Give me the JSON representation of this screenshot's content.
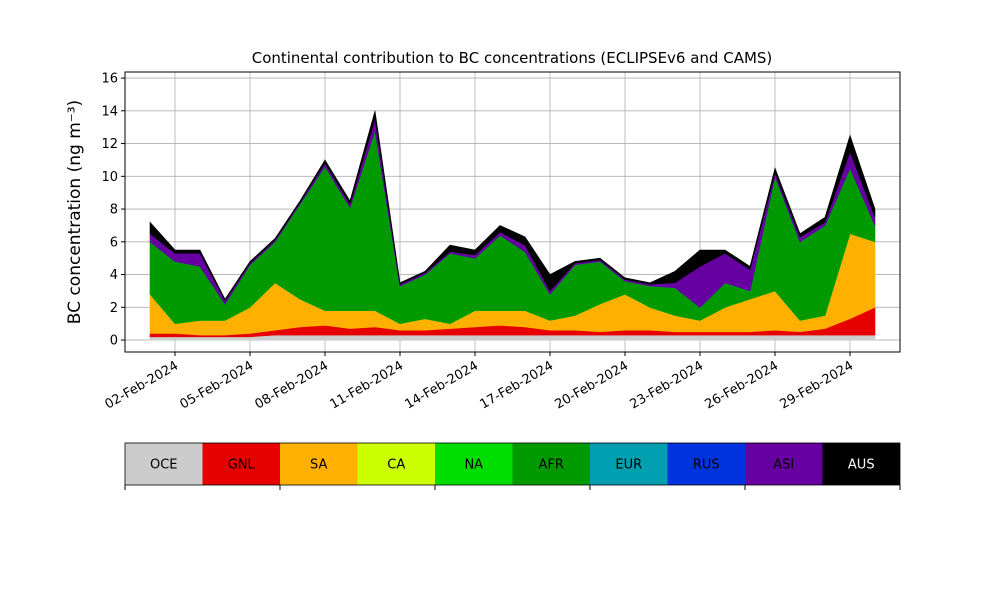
{
  "chart_data": {
    "type": "stacked_area",
    "title": "Continental contribution to BC concentrations (ECLIPSEv6 and CAMS)",
    "y_label": "BC concentration (ng m⁻³)",
    "x": [
      "2024-02-01",
      "2024-02-02",
      "2024-02-03",
      "2024-02-04",
      "2024-02-05",
      "2024-02-06",
      "2024-02-07",
      "2024-02-08",
      "2024-02-09",
      "2024-02-10",
      "2024-02-11",
      "2024-02-12",
      "2024-02-13",
      "2024-02-14",
      "2024-02-15",
      "2024-02-16",
      "2024-02-17",
      "2024-02-18",
      "2024-02-19",
      "2024-02-20",
      "2024-02-21",
      "2024-02-22",
      "2024-02-23",
      "2024-02-24",
      "2024-02-25",
      "2024-02-26",
      "2024-02-27",
      "2024-02-28",
      "2024-02-29",
      "2024-03-01"
    ],
    "xlim": [
      "2024-01-31",
      "2024-03-02"
    ],
    "xticks": [
      {
        "value": "2024-02-02",
        "label": "02-Feb-2024"
      },
      {
        "value": "2024-02-05",
        "label": "05-Feb-2024"
      },
      {
        "value": "2024-02-08",
        "label": "08-Feb-2024"
      },
      {
        "value": "2024-02-11",
        "label": "11-Feb-2024"
      },
      {
        "value": "2024-02-14",
        "label": "14-Feb-2024"
      },
      {
        "value": "2024-02-17",
        "label": "17-Feb-2024"
      },
      {
        "value": "2024-02-20",
        "label": "20-Feb-2024"
      },
      {
        "value": "2024-02-23",
        "label": "23-Feb-2024"
      },
      {
        "value": "2024-02-26",
        "label": "26-Feb-2024"
      },
      {
        "value": "2024-02-29",
        "label": "29-Feb-2024"
      }
    ],
    "ylim": [
      -0.73,
      16.37
    ],
    "yticks": [
      0,
      2,
      4,
      6,
      8,
      10,
      12,
      14,
      16
    ],
    "grid": true,
    "series": [
      {
        "name": "OCE",
        "color": "#cccccc",
        "values": [
          0.2,
          0.2,
          0.2,
          0.2,
          0.2,
          0.3,
          0.3,
          0.3,
          0.3,
          0.3,
          0.3,
          0.3,
          0.3,
          0.3,
          0.3,
          0.3,
          0.3,
          0.3,
          0.3,
          0.3,
          0.3,
          0.3,
          0.3,
          0.3,
          0.3,
          0.3,
          0.3,
          0.3,
          0.3,
          0.3
        ]
      },
      {
        "name": "GNL",
        "color": "#e60000",
        "values": [
          0.2,
          0.2,
          0.1,
          0.1,
          0.2,
          0.3,
          0.5,
          0.6,
          0.4,
          0.5,
          0.3,
          0.3,
          0.4,
          0.5,
          0.6,
          0.5,
          0.3,
          0.3,
          0.2,
          0.3,
          0.3,
          0.2,
          0.2,
          0.2,
          0.2,
          0.3,
          0.2,
          0.4,
          1.0,
          1.7
        ]
      },
      {
        "name": "SA",
        "color": "#ffb000",
        "values": [
          2.4,
          0.6,
          0.9,
          0.9,
          1.6,
          2.9,
          1.7,
          0.9,
          1.1,
          1.0,
          0.4,
          0.7,
          0.3,
          1.0,
          0.9,
          1.0,
          0.6,
          0.9,
          1.7,
          2.2,
          1.4,
          1.0,
          0.7,
          1.5,
          2.0,
          2.4,
          0.7,
          0.8,
          5.2,
          4.0
        ]
      },
      {
        "name": "CA",
        "color": "#ccff00",
        "values": [
          0,
          0,
          0,
          0,
          0,
          0,
          0,
          0,
          0,
          0,
          0,
          0,
          0,
          0,
          0,
          0,
          0,
          0,
          0,
          0,
          0,
          0,
          0,
          0,
          0,
          0,
          0,
          0,
          0,
          0
        ]
      },
      {
        "name": "NA",
        "color": "#00dd00",
        "values": [
          0,
          0,
          0,
          0,
          0,
          0,
          0,
          0,
          0,
          0,
          0,
          0,
          0,
          0,
          0,
          0,
          0,
          0,
          0,
          0,
          0,
          0,
          0,
          0,
          0,
          0,
          0,
          0,
          0,
          0
        ]
      },
      {
        "name": "AFR",
        "color": "#009900",
        "values": [
          3.2,
          3.8,
          3.3,
          1.0,
          2.6,
          2.5,
          5.8,
          8.8,
          6.3,
          11.0,
          2.3,
          2.7,
          4.3,
          3.2,
          4.6,
          3.6,
          1.6,
          3.1,
          2.6,
          0.8,
          1.3,
          1.7,
          0.8,
          1.5,
          0.5,
          7.0,
          4.8,
          5.5,
          4.0,
          1.0
        ]
      },
      {
        "name": "EUR",
        "color": "#00a0b0",
        "values": [
          0,
          0,
          0,
          0,
          0,
          0,
          0,
          0,
          0,
          0,
          0,
          0,
          0,
          0,
          0,
          0,
          0,
          0,
          0,
          0,
          0,
          0,
          0,
          0,
          0,
          0,
          0,
          0,
          0,
          0
        ]
      },
      {
        "name": "RUS",
        "color": "#0033dd",
        "values": [
          0,
          0,
          0,
          0,
          0,
          0,
          0,
          0,
          0,
          0,
          0,
          0,
          0,
          0,
          0,
          0,
          0,
          0,
          0,
          0,
          0,
          0,
          0,
          0,
          0,
          0,
          0,
          0,
          0,
          0
        ]
      },
      {
        "name": "ASI",
        "color": "#6600a0",
        "values": [
          0.5,
          0.5,
          0.8,
          0.2,
          0.1,
          0.1,
          0.1,
          0.2,
          0.2,
          0.7,
          0.1,
          0.1,
          0.1,
          0.2,
          0.2,
          0.4,
          0.2,
          0.1,
          0.1,
          0.1,
          0.1,
          0.3,
          2.5,
          1.8,
          1.3,
          0.2,
          0.3,
          0.2,
          1.0,
          0.5
        ]
      },
      {
        "name": "AUS",
        "color": "#000000",
        "values": [
          0.7,
          0.2,
          0.2,
          0.1,
          0.1,
          0.1,
          0.1,
          0.2,
          0.2,
          0.5,
          0.1,
          0.1,
          0.4,
          0.3,
          0.4,
          0.5,
          1.0,
          0.1,
          0.1,
          0.1,
          0.1,
          0.7,
          1.0,
          0.2,
          0.2,
          0.3,
          0.2,
          0.3,
          1.0,
          0.5
        ]
      }
    ]
  }
}
